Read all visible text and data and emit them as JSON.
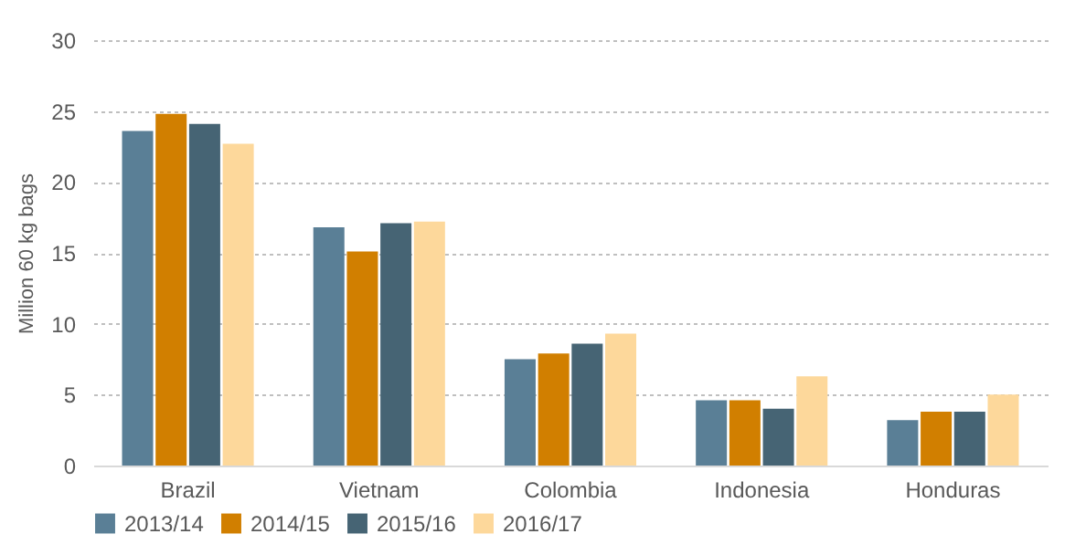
{
  "chart_data": {
    "type": "bar",
    "ylabel": "Million 60 kg bags",
    "categories": [
      "Brazil",
      "Vietnam",
      "Colombia",
      "Indonesia",
      "Honduras"
    ],
    "series": [
      {
        "name": "2013/14",
        "color": "#5a7f96",
        "values": [
          23.6,
          16.8,
          7.5,
          4.6,
          3.2
        ]
      },
      {
        "name": "2014/15",
        "color": "#d17f00",
        "values": [
          24.8,
          15.1,
          7.9,
          4.6,
          3.8
        ]
      },
      {
        "name": "2015/16",
        "color": "#466474",
        "values": [
          24.1,
          17.1,
          8.6,
          4.0,
          3.8
        ]
      },
      {
        "name": "2016/17",
        "color": "#fdd89b",
        "values": [
          22.7,
          17.2,
          9.3,
          6.3,
          5.0
        ]
      }
    ],
    "ylim": [
      0,
      30
    ],
    "yticks": [
      0,
      5,
      10,
      15,
      20,
      25,
      30
    ],
    "grid": "y",
    "legend": "bottom"
  }
}
